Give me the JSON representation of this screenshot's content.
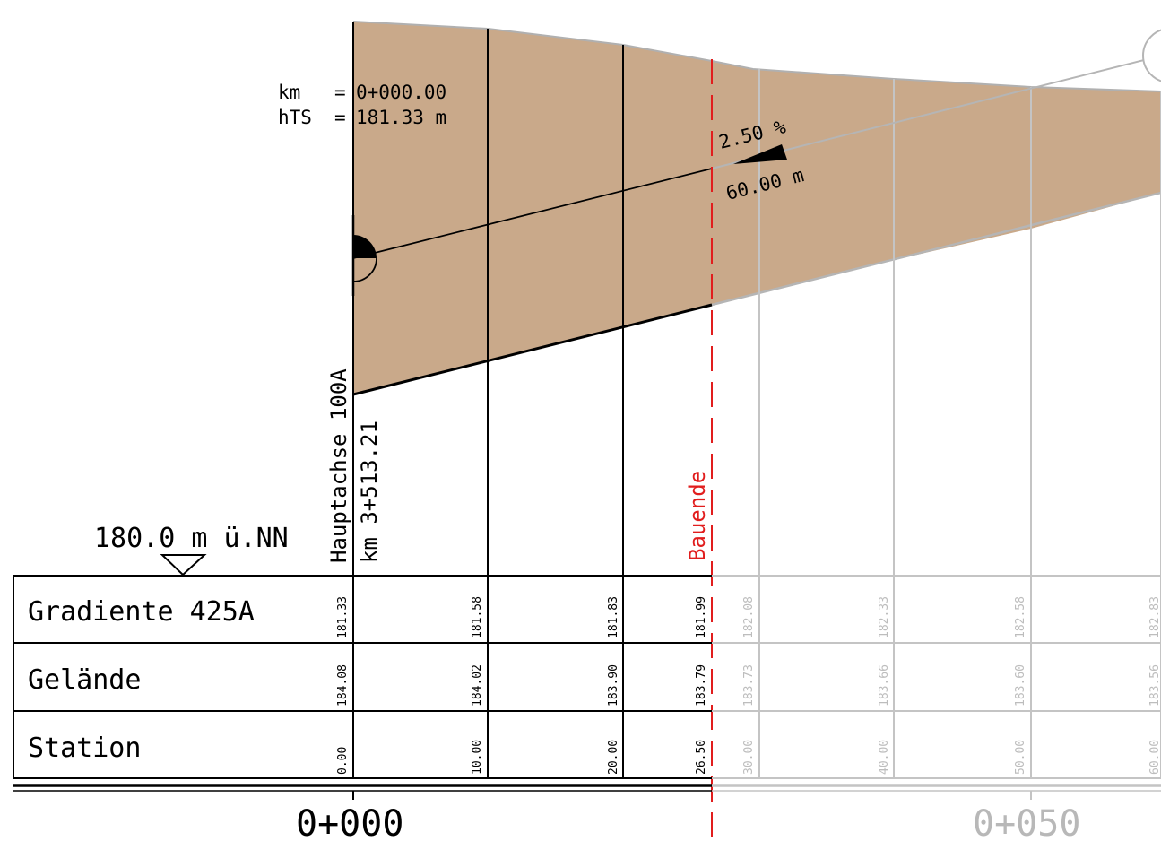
{
  "legend": {
    "reference_level": "180.0 m ü.NN"
  },
  "axis": {
    "name": "Hauptachse 100A",
    "km": "km 3+513.21"
  },
  "start_info": {
    "km_label": "km",
    "km_value": "0+000.00",
    "hts_label": "hTS",
    "hts_value": "181.33 m",
    "eq": "="
  },
  "grade": {
    "percent": "2.50 %",
    "length": "60.00 m"
  },
  "bauende_label": "Bauende",
  "rows": {
    "gradiente": "Gradiente 425A",
    "gelaende": "Gelände",
    "station": "Station"
  },
  "columns": [
    {
      "gradiente": "181.33",
      "gelaende": "184.08",
      "station": "0.00",
      "active": true
    },
    {
      "gradiente": "181.58",
      "gelaende": "184.02",
      "station": "10.00",
      "active": true
    },
    {
      "gradiente": "181.83",
      "gelaende": "183.90",
      "station": "20.00",
      "active": true
    },
    {
      "gradiente": "181.99",
      "gelaende": "183.79",
      "station": "26.50",
      "active": true
    },
    {
      "gradiente": "182.08",
      "gelaende": "183.73",
      "station": "30.00",
      "active": false
    },
    {
      "gradiente": "182.33",
      "gelaende": "183.66",
      "station": "40.00",
      "active": false
    },
    {
      "gradiente": "182.58",
      "gelaende": "183.60",
      "station": "50.00",
      "active": false
    },
    {
      "gradiente": "182.83",
      "gelaende": "183.56",
      "station": "60.00",
      "active": false
    }
  ],
  "km_marks": {
    "start": "0+000",
    "mid": "0+050"
  },
  "colors": {
    "fill": "#c9a98a",
    "bauende": "#e11d1d",
    "inactive": "#bdbdbd"
  }
}
